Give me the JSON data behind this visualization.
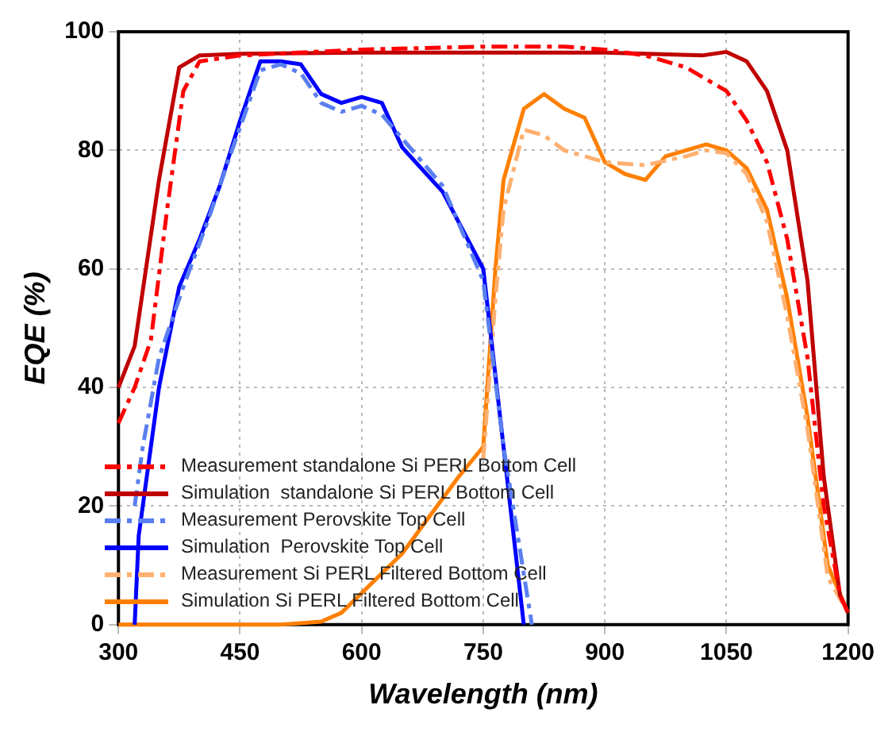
{
  "chart_data": {
    "type": "line",
    "xlabel": "Wavelength (nm)",
    "ylabel": "EQE (%)",
    "xlim": [
      300,
      1200
    ],
    "xticks": [
      300,
      450,
      600,
      750,
      900,
      1050,
      1200
    ],
    "ylim": [
      0,
      100
    ],
    "yticks": [
      0,
      20,
      40,
      60,
      80,
      100
    ],
    "grid": true,
    "legend": "bottom left",
    "marker": "none",
    "series": [
      {
        "name": "Measurement standalone Si PERL Bottom Cell",
        "color": "#ff0000",
        "line_style": "dashed",
        "x": [
          300,
          320,
          340,
          360,
          380,
          400,
          450,
          600,
          750,
          850,
          900,
          950,
          1000,
          1050,
          1075,
          1100,
          1125,
          1150,
          1170,
          1190,
          1200
        ],
        "values": [
          34,
          40,
          48,
          70,
          90,
          95,
          96,
          97,
          97.5,
          97.5,
          97,
          96,
          94,
          90,
          85,
          78,
          65,
          45,
          20,
          5,
          2
        ]
      },
      {
        "name": "Simulation  standalone Si PERL Bottom Cell",
        "color": "#c00000",
        "line_style": "solid",
        "x": [
          300,
          320,
          350,
          375,
          400,
          450,
          600,
          900,
          1020,
          1050,
          1075,
          1100,
          1125,
          1150,
          1170,
          1190,
          1200
        ],
        "values": [
          40,
          47,
          75,
          94,
          96,
          96.3,
          96.5,
          96.5,
          96,
          96.6,
          95,
          90,
          80,
          58,
          25,
          5,
          2
        ]
      },
      {
        "name": "Measurement Perovskite Top Cell",
        "color": "#5a7ff0",
        "line_style": "dashed",
        "x": [
          320,
          330,
          350,
          380,
          410,
          440,
          475,
          500,
          525,
          550,
          575,
          600,
          625,
          650,
          700,
          750,
          775,
          810
        ],
        "values": [
          20,
          30,
          45,
          57,
          68,
          80,
          93.5,
          94.5,
          93,
          88,
          86.5,
          87.5,
          86,
          82,
          74,
          58,
          30,
          0
        ]
      },
      {
        "name": "Simulation  Perovskite Top Cell",
        "color": "#0000ff",
        "line_style": "solid",
        "x": [
          320,
          325,
          350,
          375,
          400,
          425,
          450,
          475,
          500,
          525,
          550,
          575,
          600,
          625,
          650,
          700,
          750,
          775,
          800
        ],
        "values": [
          0,
          15,
          40,
          57,
          65,
          74,
          85,
          95,
          95,
          94.5,
          89.5,
          88,
          89,
          88,
          80.5,
          73,
          60,
          30,
          0
        ]
      },
      {
        "name": "Measurement Si PERL Filtered Bottom Cell",
        "color": "#ffb070",
        "line_style": "dashed",
        "x": [
          750,
          765,
          775,
          800,
          825,
          850,
          900,
          950,
          1000,
          1025,
          1050,
          1075,
          1100,
          1125,
          1150,
          1175,
          1200
        ],
        "values": [
          28,
          55,
          70,
          83.5,
          82.5,
          80,
          78,
          77.5,
          79,
          80,
          79.5,
          76,
          68,
          52,
          33,
          8,
          2
        ]
      },
      {
        "name": "Simulation Si PERL Filtered Bottom Cell",
        "color": "#ff8000",
        "line_style": "solid",
        "x": [
          300,
          500,
          550,
          575,
          650,
          720,
          750,
          765,
          775,
          800,
          825,
          850,
          875,
          900,
          925,
          950,
          975,
          1000,
          1025,
          1050,
          1075,
          1100,
          1125,
          1150,
          1175,
          1200
        ],
        "values": [
          0,
          0,
          0.5,
          2,
          12,
          25,
          30,
          60,
          75,
          87,
          89.5,
          87,
          85.5,
          78,
          76,
          75,
          79,
          80,
          81,
          80,
          77,
          70,
          55,
          35,
          10,
          2
        ]
      }
    ]
  }
}
